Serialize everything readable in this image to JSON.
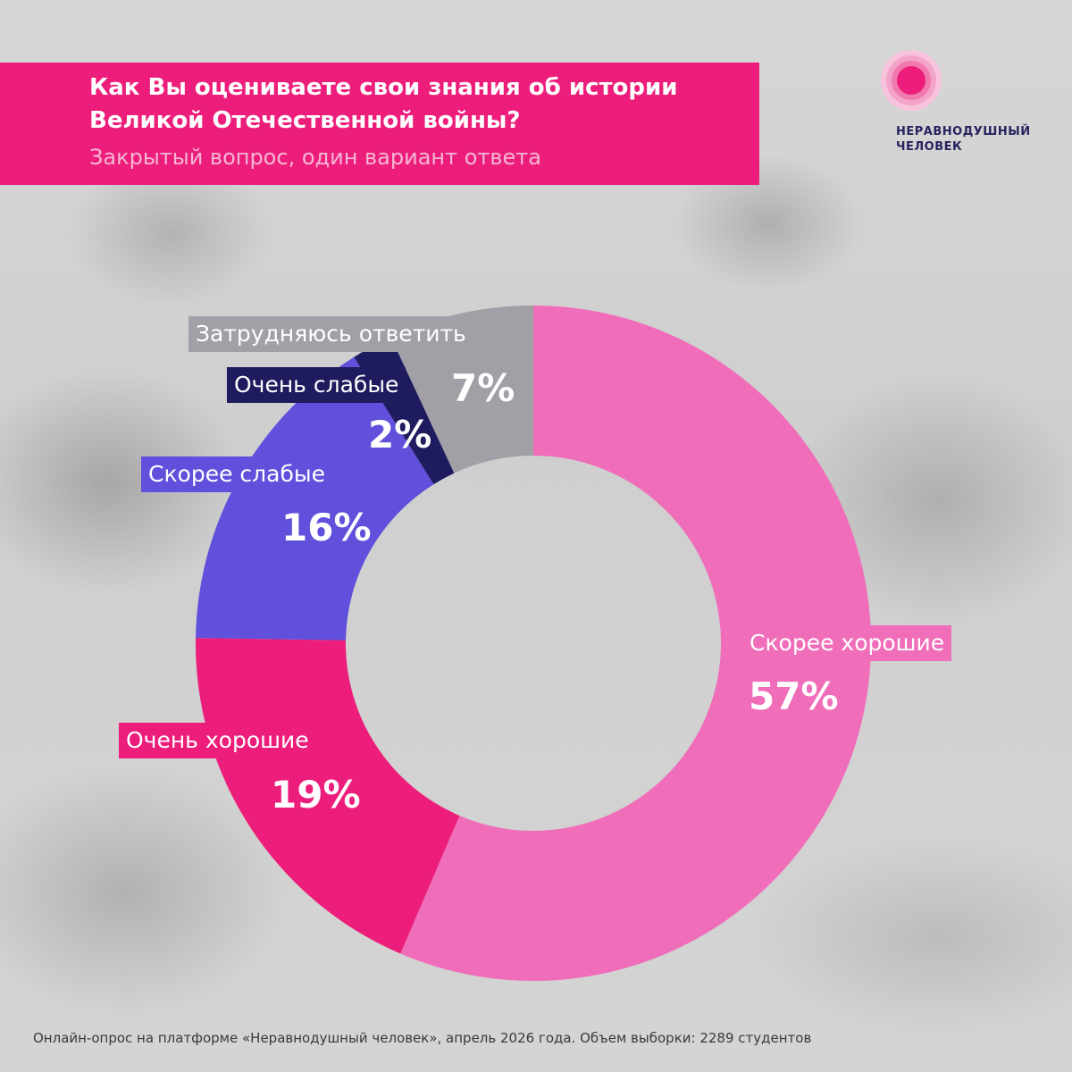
{
  "header": {
    "title": "Как Вы оцениваете свои знания об истории Великой Отечественной войны?",
    "subtitle": "Закрытый вопрос, один вариант ответа"
  },
  "logo": {
    "line1": "НЕРАВНОДУШНЫЙ",
    "line2": "ЧЕЛОВЕК"
  },
  "chart_data": {
    "type": "pie",
    "donut": true,
    "title": "Как Вы оцениваете свои знания об истории Великой Отечественной войны?",
    "slices": [
      {
        "label": "Скорее хорошие",
        "value": 57,
        "value_label": "57%",
        "color": "#f06eb9"
      },
      {
        "label": "Очень хорошие",
        "value": 19,
        "value_label": "19%",
        "color": "#ed1e7b"
      },
      {
        "label": "Скорее слабые",
        "value": 16,
        "value_label": "16%",
        "color": "#6050dc"
      },
      {
        "label": "Очень слабые",
        "value": 2,
        "value_label": "2%",
        "color": "#1e1b5e"
      },
      {
        "label": "Затрудняюсь ответить",
        "value": 7,
        "value_label": "7%",
        "color": "#a0a0a6"
      }
    ]
  },
  "footer": {
    "note": "Онлайн-опрос на платформе «Неравнодушный человек», апрель 2026 года. Объем выборки: 2289 студентов"
  }
}
